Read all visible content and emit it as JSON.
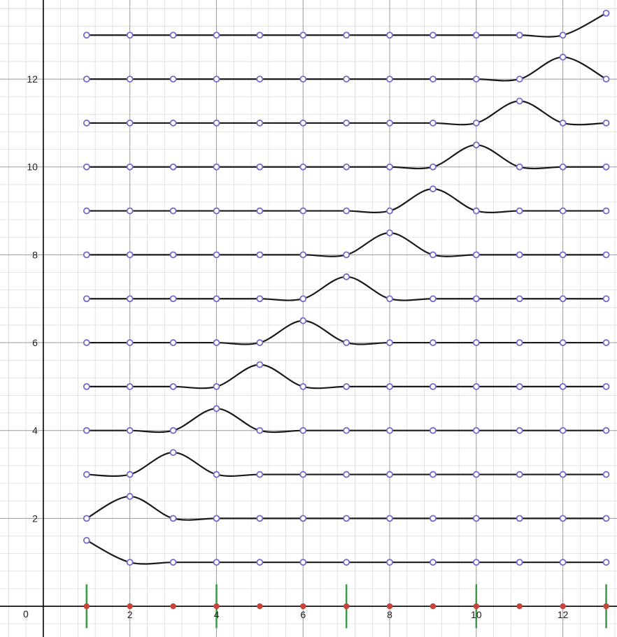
{
  "chart_data": {
    "type": "line",
    "title": "",
    "xlabel": "",
    "ylabel": "",
    "xlim": [
      -1.0,
      13.25
    ],
    "ylim": [
      -0.7,
      13.8
    ],
    "grid": {
      "major": 2,
      "minor": 0.4
    },
    "x_ticks": [
      2,
      4,
      6,
      8,
      10,
      12
    ],
    "y_ticks": [
      2,
      4,
      6,
      8,
      10,
      12
    ],
    "origin_label": "0",
    "colors": {
      "curve": "#1a1a1a",
      "point_fill": "#ffffff",
      "point_stroke": "#7b68c8",
      "base_point": "#c8433a",
      "marker": "#3c9a46",
      "axis": "#000000",
      "major_grid": "#9a9a9a",
      "minor_grid": "#dcdcdc"
    },
    "x": [
      1,
      2,
      3,
      4,
      5,
      6,
      7,
      8,
      9,
      10,
      11,
      12,
      13
    ],
    "series": [
      {
        "y": [
          1.5,
          1,
          1,
          1,
          1,
          1,
          1,
          1,
          1,
          1,
          1,
          1,
          1
        ]
      },
      {
        "y": [
          2,
          2.5,
          2,
          2,
          2,
          2,
          2,
          2,
          2,
          2,
          2,
          2,
          2
        ]
      },
      {
        "y": [
          3,
          3,
          3.5,
          3,
          3,
          3,
          3,
          3,
          3,
          3,
          3,
          3,
          3
        ]
      },
      {
        "y": [
          4,
          4,
          4,
          4.5,
          4,
          4,
          4,
          4,
          4,
          4,
          4,
          4,
          4
        ]
      },
      {
        "y": [
          5,
          5,
          5,
          5,
          5.5,
          5,
          5,
          5,
          5,
          5,
          5,
          5,
          5
        ]
      },
      {
        "y": [
          6,
          6,
          6,
          6,
          6,
          6.5,
          6,
          6,
          6,
          6,
          6,
          6,
          6
        ]
      },
      {
        "y": [
          7,
          7,
          7,
          7,
          7,
          7,
          7.5,
          7,
          7,
          7,
          7,
          7,
          7
        ]
      },
      {
        "y": [
          8,
          8,
          8,
          8,
          8,
          8,
          8,
          8.5,
          8,
          8,
          8,
          8,
          8
        ]
      },
      {
        "y": [
          9,
          9,
          9,
          9,
          9,
          9,
          9,
          9,
          9.5,
          9,
          9,
          9,
          9
        ]
      },
      {
        "y": [
          10,
          10,
          10,
          10,
          10,
          10,
          10,
          10,
          10,
          10.5,
          10,
          10,
          10
        ]
      },
      {
        "y": [
          11,
          11,
          11,
          11,
          11,
          11,
          11,
          11,
          11,
          11,
          11.5,
          11,
          11
        ]
      },
      {
        "y": [
          12,
          12,
          12,
          12,
          12,
          12,
          12,
          12,
          12,
          12,
          12,
          12.5,
          12
        ]
      },
      {
        "y": [
          13,
          13,
          13,
          13,
          13,
          13,
          13,
          13,
          13,
          13,
          13,
          13,
          13.5
        ]
      }
    ],
    "base_points": {
      "x": [
        1,
        2,
        3,
        4,
        5,
        6,
        7,
        8,
        9,
        10,
        11,
        12,
        13
      ],
      "y": 0
    },
    "vertical_markers": {
      "x": [
        1,
        4,
        7,
        10,
        13
      ],
      "y_range": [
        -0.5,
        0.5
      ]
    }
  }
}
